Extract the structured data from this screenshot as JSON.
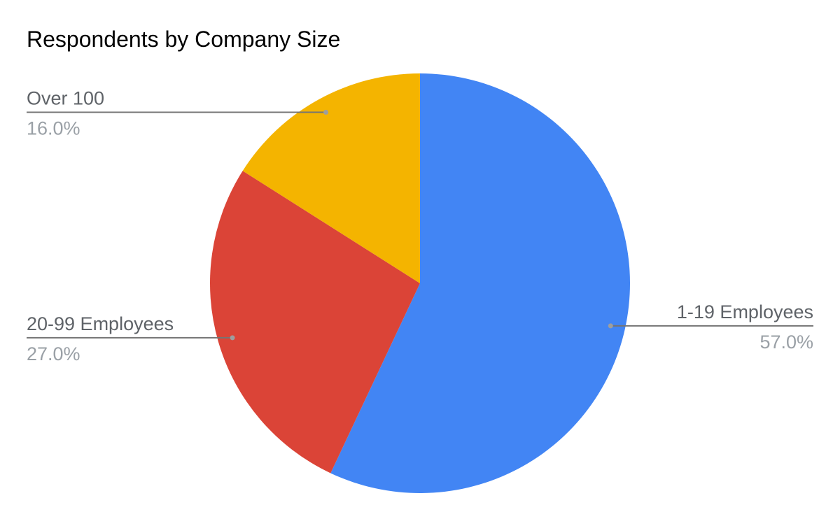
{
  "chart_data": {
    "type": "pie",
    "title": "Respondents by Company Size",
    "slices": [
      {
        "label": "1-19 Employees",
        "value": 57.0,
        "value_label": "57.0%",
        "color": "#4285f4"
      },
      {
        "label": "20-99 Employees",
        "value": 27.0,
        "value_label": "27.0%",
        "color": "#db4437"
      },
      {
        "label": "Over 100",
        "value": 16.0,
        "value_label": "16.0%",
        "color": "#f4b400"
      }
    ],
    "start_angle": "12 o'clock",
    "direction": "clockwise",
    "leader_line_color": "#757575"
  }
}
